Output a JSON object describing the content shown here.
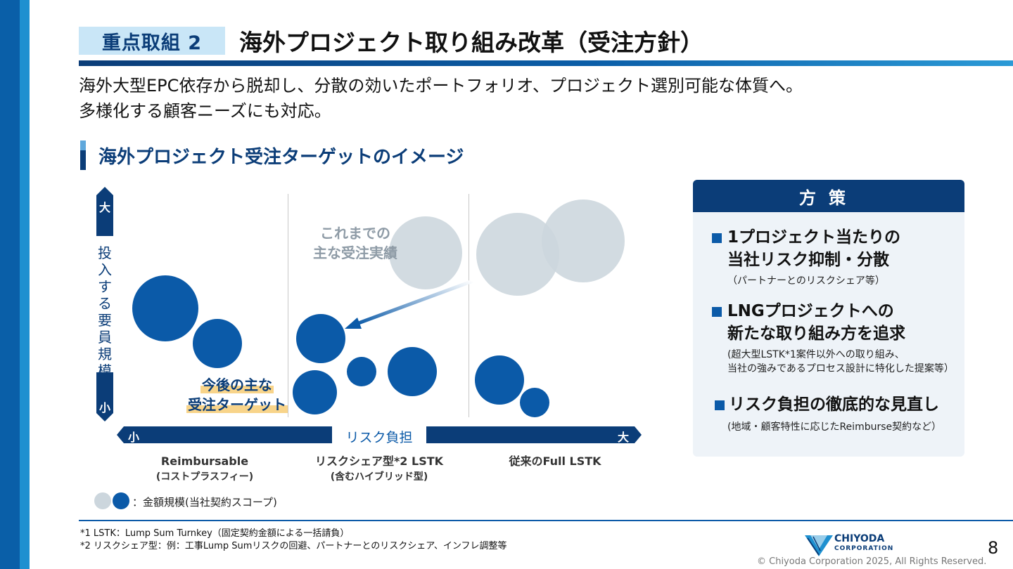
{
  "header": {
    "badge": "重点取組 2",
    "title": "海外プロジェクト取り組み改革（受注方針）"
  },
  "lead": {
    "line1": "海外大型EPC依存から脱却し、分散の効いたポートフォリオ、プロジェクト選別可能な体質へ。",
    "line2": "多様化する顧客ニーズにも対応。"
  },
  "section": {
    "title": "海外プロジェクト受注ターゲットのイメージ"
  },
  "chart": {
    "prev_label_1": "これまでの",
    "prev_label_2": "主な受注実績",
    "target_label_1": "今後の主な",
    "target_label_2": "受注ターゲット",
    "y_axis": {
      "big": "大",
      "small": "小",
      "title": "投入する要員規模"
    },
    "x_axis": {
      "small": "小",
      "big": "大",
      "title": "リスク負担"
    },
    "categories": [
      {
        "name": "Reimbursable",
        "sub": "(コストプラスフィー)"
      },
      {
        "name": "リスクシェア型*2 LSTK",
        "sub": "(含むハイブリッド型)"
      },
      {
        "name": "従来のFull LSTK",
        "sub": ""
      }
    ],
    "legend": "：金額規模(当社契約スコープ)",
    "colors": {
      "target": "#0b5aa8",
      "previous": "#ccd6dd"
    }
  },
  "panel": {
    "title": "方策",
    "items": [
      {
        "line1": "1プロジェクト当たりの",
        "line2": "当社リスク抑制・分散",
        "note1": "（パートナーとのリスクシェア等）",
        "note2": ""
      },
      {
        "line1": "LNGプロジェクトへの",
        "line2": "新たな取り組み方を追求",
        "note1": "(超大型LSTK*1案件以外への取り組み、",
        "note2": "当社の強みであるプロセス設計に特化した提案等）"
      },
      {
        "line1": "リスク負担の徹底的な見直し",
        "line2": "",
        "note1": "(地域・顧客特性に応じたReimburse契約など）",
        "note2": ""
      }
    ]
  },
  "footnotes": {
    "n1": "*1 LSTK：Lump Sum Turnkey（固定契約金額による一括請負）",
    "n2": "*2 リスクシェア型：例：工事Lump Sumリスクの回避、パートナーとのリスクシェア、インフレ調整等"
  },
  "footer": {
    "logo_name": "CHIYODA",
    "logo_sub": "CORPORATION",
    "page": "8",
    "copyright": "© Chiyoda Corporation 2025, All Rights Reserved."
  }
}
